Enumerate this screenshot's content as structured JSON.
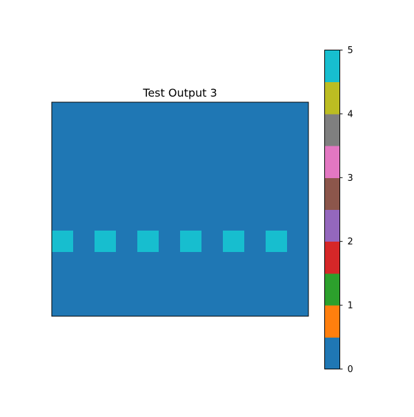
{
  "chart_data": {
    "type": "heatmap",
    "title": "Test Output 3",
    "xlabel": "",
    "ylabel": "",
    "axes_ticks": "off",
    "grid": [
      [
        0,
        0,
        0,
        0,
        0,
        0,
        0,
        0,
        0,
        0,
        0,
        0
      ],
      [
        0,
        0,
        0,
        0,
        0,
        0,
        0,
        0,
        0,
        0,
        0,
        0
      ],
      [
        0,
        0,
        0,
        0,
        0,
        0,
        0,
        0,
        0,
        0,
        0,
        0
      ],
      [
        0,
        0,
        0,
        0,
        0,
        0,
        0,
        0,
        0,
        0,
        0,
        0
      ],
      [
        0,
        0,
        0,
        0,
        0,
        0,
        0,
        0,
        0,
        0,
        0,
        0
      ],
      [
        0,
        0,
        0,
        0,
        0,
        0,
        0,
        0,
        0,
        0,
        0,
        0
      ],
      [
        5,
        0,
        5,
        0,
        5,
        0,
        5,
        0,
        5,
        0,
        5,
        0
      ],
      [
        0,
        0,
        0,
        0,
        0,
        0,
        0,
        0,
        0,
        0,
        0,
        0
      ],
      [
        0,
        0,
        0,
        0,
        0,
        0,
        0,
        0,
        0,
        0,
        0,
        0
      ],
      [
        0,
        0,
        0,
        0,
        0,
        0,
        0,
        0,
        0,
        0,
        0,
        0
      ]
    ],
    "colorbar": {
      "vmin": 0,
      "vmax": 5,
      "ticks": [
        "0",
        "1",
        "2",
        "3",
        "4",
        "5"
      ],
      "colors": [
        "#1f77b4",
        "#ff7f0e",
        "#2ca02c",
        "#d62728",
        "#9467bd",
        "#8c564b",
        "#e377c2",
        "#7f7f7f",
        "#bcbd22",
        "#17becf"
      ]
    }
  }
}
